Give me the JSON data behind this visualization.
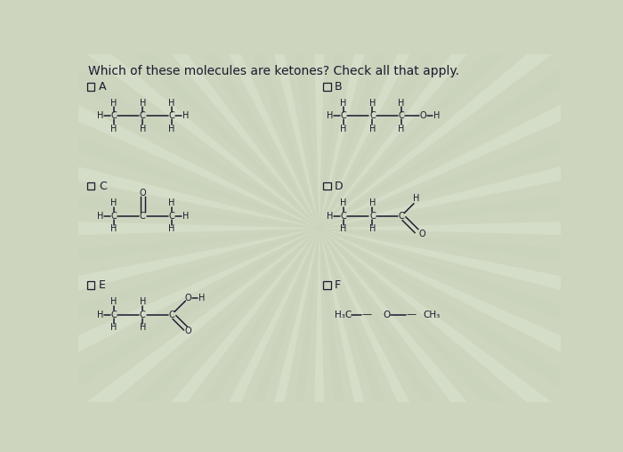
{
  "title": "Which of these molecules are ketones? Check all that apply.",
  "bg_color": "#cdd5be",
  "stripe_color1": "#c8d4bc",
  "stripe_color2": "#d8e0cc",
  "text_color": "#1a1a2e",
  "bond_color": "#1a1a2e",
  "font_size_title": 10,
  "font_size_atom": 7,
  "font_size_label": 9,
  "layout": {
    "A": {
      "checkbox": [
        0.13,
        4.55
      ],
      "mol": [
        0.52,
        4.18
      ]
    },
    "B": {
      "checkbox": [
        3.55,
        4.55
      ],
      "mol": [
        3.85,
        4.18
      ]
    },
    "C": {
      "checkbox": [
        0.13,
        3.1
      ],
      "mol": [
        0.52,
        2.72
      ]
    },
    "D": {
      "checkbox": [
        3.55,
        3.1
      ],
      "mol": [
        3.85,
        2.72
      ]
    },
    "E": {
      "checkbox": [
        0.13,
        1.65
      ],
      "mol": [
        0.52,
        1.28
      ]
    },
    "F": {
      "checkbox": [
        3.55,
        1.65
      ],
      "mol": [
        3.85,
        1.28
      ]
    }
  },
  "mol_scale": 0.42,
  "bond_lw": 1.1
}
